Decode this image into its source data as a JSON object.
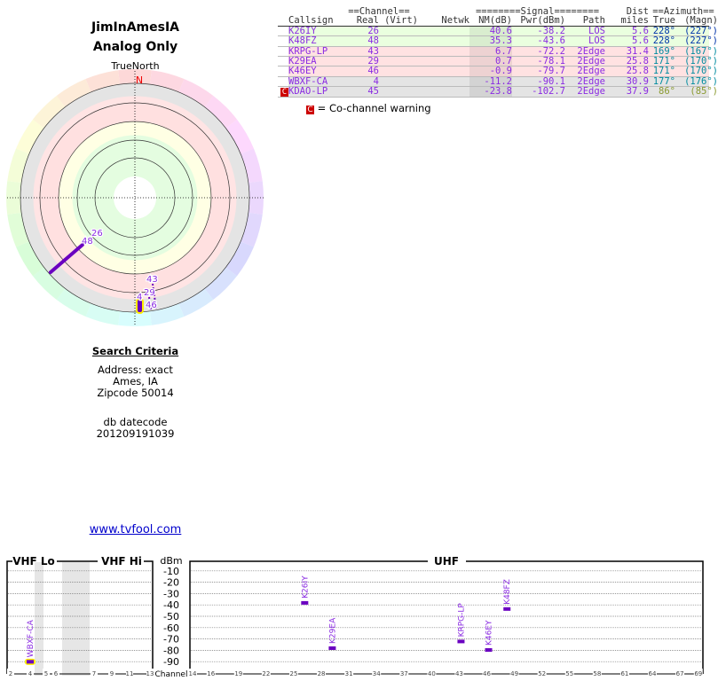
{
  "header": {
    "title": "JimInAmesIA",
    "subtitle": "Analog Only"
  },
  "polar": {
    "north_label": "TrueNorth",
    "n_mark": "N",
    "labels": [
      "26",
      "48",
      "43",
      "29",
      "4",
      "46"
    ]
  },
  "search": {
    "heading": "Search Criteria",
    "address": "Address: exact",
    "city": "Ames, IA",
    "zip": "Zipcode 50014",
    "db_label": "db datecode",
    "db_value": "201209191039"
  },
  "link": "www.tvfool.com",
  "table": {
    "group_headers": {
      "channel": "==Channel==",
      "signal": "========Signal========",
      "dist": "Dist",
      "azimuth": "==Azimuth=="
    },
    "columns": [
      "Callsign",
      "Real",
      "(Virt)",
      "Netwk",
      "NM(dB)",
      "Pwr(dBm)",
      "Path",
      "miles",
      "True",
      "(Magn)"
    ],
    "rows": [
      {
        "callsign": "K26IY",
        "real": "26",
        "virt": "",
        "netwk": "",
        "nm": "40.6",
        "pwr": "-38.2",
        "path": "LOS",
        "dist": "5.6",
        "true": "228°",
        "magn": "(227°)",
        "bg": "#eaffdf",
        "azcolor": "#0033aa",
        "cochannel": false
      },
      {
        "callsign": "K48FZ",
        "real": "48",
        "virt": "",
        "netwk": "",
        "nm": "35.3",
        "pwr": "-43.6",
        "path": "LOS",
        "dist": "5.6",
        "true": "228°",
        "magn": "(227°)",
        "bg": "#eaffdf",
        "azcolor": "#0033aa",
        "cochannel": false
      },
      {
        "callsign": "KRPG-LP",
        "real": "43",
        "virt": "",
        "netwk": "",
        "nm": "6.7",
        "pwr": "-72.2",
        "path": "2Edge",
        "dist": "31.4",
        "true": "169°",
        "magn": "(167°)",
        "bg": "#ffe2e2",
        "azcolor": "#008ca0",
        "cochannel": false
      },
      {
        "callsign": "K29EA",
        "real": "29",
        "virt": "",
        "netwk": "",
        "nm": "0.7",
        "pwr": "-78.1",
        "path": "2Edge",
        "dist": "25.8",
        "true": "171°",
        "magn": "(170°)",
        "bg": "#ffe2e2",
        "azcolor": "#008ca0",
        "cochannel": false
      },
      {
        "callsign": "K46EY",
        "real": "46",
        "virt": "",
        "netwk": "",
        "nm": "-0.9",
        "pwr": "-79.7",
        "path": "2Edge",
        "dist": "25.8",
        "true": "171°",
        "magn": "(170°)",
        "bg": "#ffe2e2",
        "azcolor": "#008ca0",
        "cochannel": false
      },
      {
        "callsign": "WBXF-CA",
        "real": "4",
        "virt": "",
        "netwk": "",
        "nm": "-11.2",
        "pwr": "-90.1",
        "path": "2Edge",
        "dist": "30.9",
        "true": "177°",
        "magn": "(176°)",
        "bg": "#e4e4e4",
        "azcolor": "#008ca0",
        "cochannel": false
      },
      {
        "callsign": "KDAO-LP",
        "real": "45",
        "virt": "",
        "netwk": "",
        "nm": "-23.8",
        "pwr": "-102.7",
        "path": "2Edge",
        "dist": "37.9",
        "true": "86°",
        "magn": "(85°)",
        "bg": "#e4e4e4",
        "azcolor": "#8a9a30",
        "cochannel": true,
        "cochannel_mark": "C"
      }
    ],
    "legend": {
      "mark": "C",
      "text": "= Co-channel warning"
    }
  },
  "chart_data": {
    "type": "bar",
    "title": "",
    "ylabel": "dBm",
    "xlabel": "Channel",
    "ylim": [
      -100,
      0
    ],
    "yticks": [
      "-10",
      "-20",
      "-30",
      "-40",
      "-50",
      "-60",
      "-70",
      "-80",
      "-90"
    ],
    "bands": [
      "VHF Lo",
      "VHF Hi",
      "UHF"
    ],
    "vhf_ticks": [
      "2",
      "4",
      "5",
      "6",
      "7",
      "9",
      "11",
      "13"
    ],
    "uhf_ticks": [
      "14",
      "16",
      "19",
      "22",
      "25",
      "28",
      "31",
      "34",
      "37",
      "40",
      "43",
      "46",
      "49",
      "52",
      "55",
      "58",
      "61",
      "64",
      "67",
      "69"
    ],
    "stations": [
      {
        "callsign": "WBXF-CA",
        "channel": 4,
        "dbm": -90.1,
        "highlight": true
      },
      {
        "callsign": "K26IY",
        "channel": 26,
        "dbm": -38.2
      },
      {
        "callsign": "K29EA",
        "channel": 29,
        "dbm": -78.1
      },
      {
        "callsign": "KRPG-LP",
        "channel": 43,
        "dbm": -72.2
      },
      {
        "callsign": "K46EY",
        "channel": 46,
        "dbm": -79.7
      },
      {
        "callsign": "K48FZ",
        "channel": 48,
        "dbm": -43.6
      }
    ]
  }
}
